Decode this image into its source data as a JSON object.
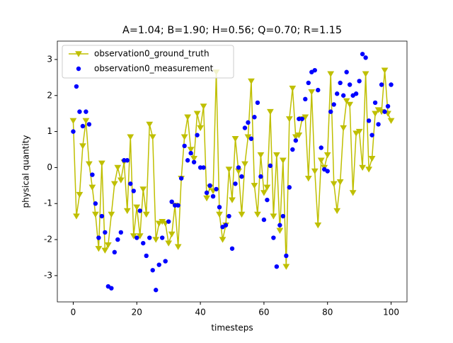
{
  "chart_data": {
    "type": "line",
    "title": "A=1.04; B=1.90; H=0.56; Q=0.70; R=1.15",
    "xlabel": "timesteps",
    "ylabel": "physical quantity",
    "x": [
      0,
      1,
      2,
      3,
      4,
      5,
      6,
      7,
      8,
      9,
      10,
      11,
      12,
      13,
      14,
      15,
      16,
      17,
      18,
      19,
      20,
      21,
      22,
      23,
      24,
      25,
      26,
      27,
      28,
      29,
      30,
      31,
      32,
      33,
      34,
      35,
      36,
      37,
      38,
      39,
      40,
      41,
      42,
      43,
      44,
      45,
      46,
      47,
      48,
      49,
      50,
      51,
      52,
      53,
      54,
      55,
      56,
      57,
      58,
      59,
      60,
      61,
      62,
      63,
      64,
      65,
      66,
      67,
      68,
      69,
      70,
      71,
      72,
      73,
      74,
      75,
      76,
      77,
      78,
      79,
      80,
      81,
      82,
      83,
      84,
      85,
      86,
      87,
      88,
      89,
      90,
      91,
      92,
      93,
      94,
      95,
      96,
      97,
      98,
      99,
      100
    ],
    "series": [
      {
        "name": "observation0_ground_truth",
        "type": "line",
        "color": "#bfbf00",
        "values": [
          1.3,
          -1.35,
          -0.75,
          0.6,
          1.3,
          0.1,
          -0.55,
          -1.3,
          -2.25,
          0.12,
          -2.3,
          -2.15,
          -1.3,
          -0.45,
          0.0,
          -0.35,
          0.15,
          -1.2,
          0.85,
          -1.9,
          -1.1,
          -1.9,
          -0.6,
          -1.3,
          1.2,
          0.85,
          -2.0,
          -1.55,
          -1.5,
          -1.55,
          -2.1,
          -1.85,
          -1.05,
          -2.2,
          -0.3,
          0.85,
          1.4,
          0.5,
          0.25,
          1.5,
          1.1,
          1.7,
          -0.85,
          -0.55,
          -0.65,
          2.65,
          -1.3,
          -2.0,
          -1.6,
          -0.05,
          -0.9,
          0.8,
          -0.1,
          -1.3,
          0.1,
          0.85,
          2.4,
          -0.5,
          -1.3,
          0.35,
          -0.7,
          -0.55,
          1.55,
          -1.35,
          0.35,
          -1.75,
          0.2,
          -2.75,
          1.35,
          2.2,
          0.85,
          0.9,
          1.35,
          1.4,
          -0.3,
          2.1,
          -0.1,
          -1.6,
          0.2,
          0.0,
          0.35,
          2.6,
          -0.45,
          -1.2,
          -0.4,
          1.1,
          1.85,
          1.75,
          -0.7,
          0.95,
          1.0,
          0.0,
          2.6,
          -0.05,
          0.25,
          1.5,
          1.6,
          1.55,
          2.7,
          1.5,
          1.3
        ]
      },
      {
        "name": "observation0_measurement",
        "type": "scatter",
        "color": "#0000ff",
        "values": [
          1.0,
          2.25,
          1.55,
          1.15,
          1.55,
          1.2,
          -0.2,
          -1.0,
          -1.95,
          -1.35,
          -1.8,
          -3.3,
          -3.35,
          -2.35,
          -2.0,
          -1.8,
          0.2,
          0.2,
          -0.45,
          -0.65,
          -1.95,
          -1.2,
          -2.1,
          -2.45,
          -1.95,
          -2.85,
          -3.4,
          -2.7,
          -1.95,
          -2.6,
          -1.5,
          -0.95,
          -1.05,
          -1.05,
          -0.3,
          0.6,
          0.2,
          0.4,
          0.15,
          0.9,
          0.0,
          0.0,
          -0.7,
          -0.5,
          -0.8,
          -0.6,
          -1.1,
          -1.65,
          -1.6,
          -1.35,
          -2.25,
          -0.45,
          0.0,
          -0.25,
          1.1,
          1.25,
          0.8,
          1.4,
          1.8,
          -0.25,
          -1.45,
          -0.9,
          0.05,
          -1.95,
          -2.75,
          -1.6,
          -1.35,
          -2.45,
          -0.55,
          0.5,
          0.75,
          1.35,
          1.35,
          1.9,
          2.35,
          2.65,
          2.7,
          2.15,
          0.55,
          -0.05,
          -0.1,
          1.55,
          1.75,
          2.05,
          2.35,
          2.0,
          2.65,
          2.3,
          2.0,
          2.05,
          2.4,
          3.15,
          3.05,
          1.3,
          0.9,
          1.8,
          1.2,
          2.3,
          1.55,
          1.7,
          2.3
        ]
      }
    ],
    "xlim": [
      -5,
      105
    ],
    "ylim": [
      -3.73,
      3.51
    ],
    "xticks": [
      0,
      20,
      40,
      60,
      80,
      100
    ],
    "yticks": [
      -3,
      -2,
      -1,
      0,
      1,
      2,
      3
    ],
    "legend": "upper left"
  }
}
